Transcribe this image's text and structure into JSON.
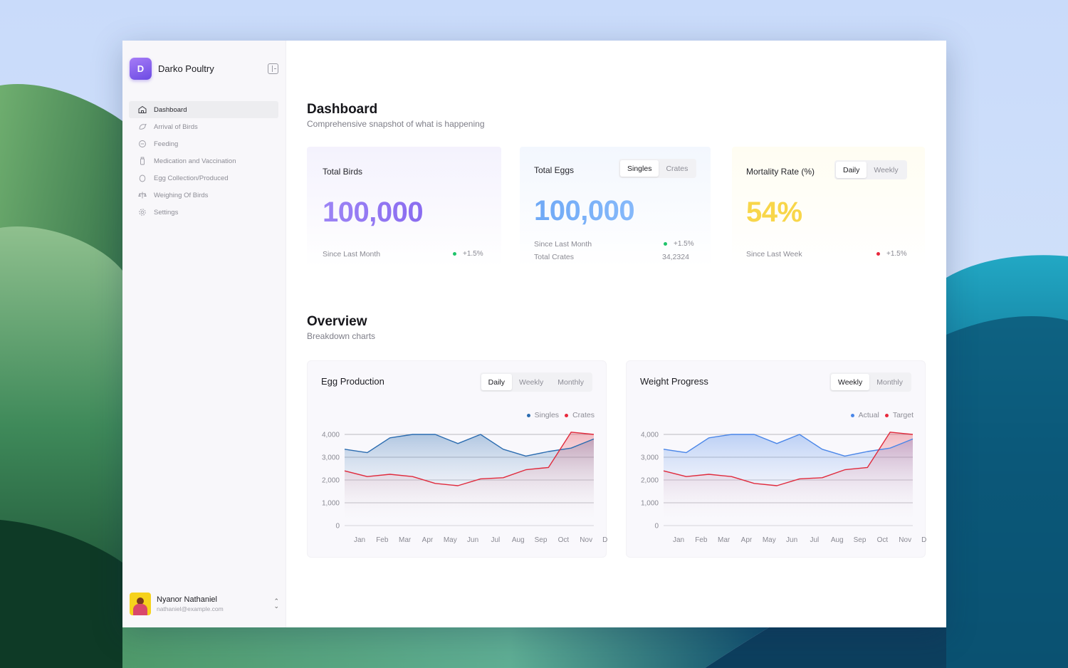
{
  "app": {
    "brand_initial": "D",
    "brand_name": "Darko Poultry"
  },
  "sidebar": {
    "items": [
      {
        "label": "Dashboard",
        "icon": "home-icon",
        "active": true
      },
      {
        "label": "Arrival of Birds",
        "icon": "bird-icon"
      },
      {
        "label": "Feeding",
        "icon": "feed-icon"
      },
      {
        "label": "Medication and Vaccination",
        "icon": "medicine-bottle-icon"
      },
      {
        "label": "Egg Collection/Produced",
        "icon": "egg-icon"
      },
      {
        "label": "Weighing Of Birds",
        "icon": "scale-icon"
      },
      {
        "label": "Settings",
        "icon": "gear-icon"
      }
    ]
  },
  "user": {
    "name": "Nyanor Nathaniel",
    "email": "nathaniel@example.com"
  },
  "header": {
    "title": "Dashboard",
    "subtitle": "Comprehensive snapshot of what is happening"
  },
  "stats": {
    "total_birds": {
      "label": "Total Birds",
      "value": "100,000",
      "foot": "Since Last Month",
      "change": "+1.5%"
    },
    "total_eggs": {
      "label": "Total Eggs",
      "tabs": [
        "Singles",
        "Crates"
      ],
      "active_tab": "Singles",
      "value": "100,000",
      "foot": "Since Last Month",
      "change": "+1.5%",
      "foot2": "Total Crates",
      "foot2_value": "34,2324"
    },
    "mortality": {
      "label": "Mortality Rate (%)",
      "tabs": [
        "Daily",
        "Weekly"
      ],
      "active_tab": "Daily",
      "value": "54%",
      "foot": "Since Last Week",
      "change": "+1.5%"
    }
  },
  "overview": {
    "title": "Overview",
    "subtitle": "Breakdown charts",
    "egg_chart": {
      "title": "Egg Production",
      "tabs": [
        "Daily",
        "Weekly",
        "Monthly"
      ],
      "active_tab": "Daily"
    },
    "weight_chart": {
      "title": "Weight Progress",
      "tabs": [
        "Weekly",
        "Monthly"
      ],
      "active_tab": "Weekly"
    }
  },
  "colors": {
    "accent_purple": "#8a6cf0",
    "blue_line": "#2b6cb0",
    "blue_line_alt": "#4a86e8",
    "red_line": "#e02a3c",
    "yellow": "#f8d64a",
    "green": "#1fc46b"
  },
  "chart_data": [
    {
      "type": "area",
      "title": "Egg Production",
      "categories": [
        "Jan",
        "Feb",
        "Mar",
        "Apr",
        "May",
        "Jun",
        "Jul",
        "Aug",
        "Sep",
        "Oct",
        "Nov",
        "Dec"
      ],
      "series": [
        {
          "name": "Singles",
          "values": [
            3350,
            3200,
            3850,
            4000,
            4000,
            3600,
            4000,
            3350,
            3050,
            3250,
            3400,
            3800
          ]
        },
        {
          "name": "Crates",
          "values": [
            2400,
            2150,
            2250,
            2150,
            1850,
            1750,
            2050,
            2100,
            2450,
            2550,
            4100,
            4000
          ]
        }
      ],
      "yticks": [
        "0",
        "1,000",
        "2,000",
        "3,000",
        "4,000"
      ],
      "ylim": [
        0,
        4000
      ],
      "legend": "top-right",
      "grid": true
    },
    {
      "type": "area",
      "title": "Weight Progress",
      "categories": [
        "Jan",
        "Feb",
        "Mar",
        "Apr",
        "May",
        "Jun",
        "Jul",
        "Aug",
        "Sep",
        "Oct",
        "Nov",
        "Dec"
      ],
      "series": [
        {
          "name": "Actual",
          "values": [
            3350,
            3200,
            3850,
            4000,
            4000,
            3600,
            4000,
            3350,
            3050,
            3250,
            3400,
            3800
          ]
        },
        {
          "name": "Target",
          "values": [
            2400,
            2150,
            2250,
            2150,
            1850,
            1750,
            2050,
            2100,
            2450,
            2550,
            4100,
            4000
          ]
        }
      ],
      "yticks": [
        "0",
        "1,000",
        "2,000",
        "3,000",
        "4,000"
      ],
      "ylim": [
        0,
        4000
      ],
      "legend": "top-right",
      "grid": true
    }
  ]
}
